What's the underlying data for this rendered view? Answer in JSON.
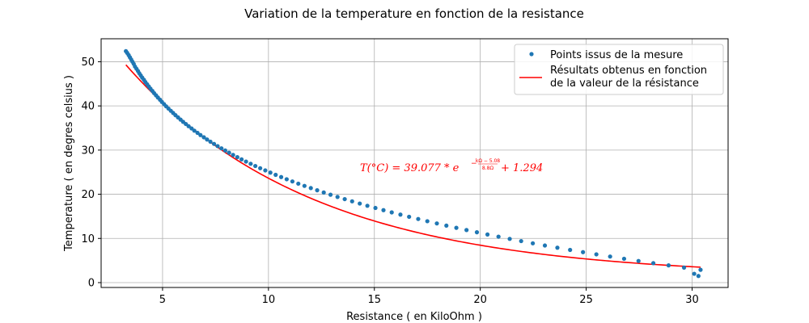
{
  "chart_data": {
    "type": "scatter",
    "title": "Variation de la temperature en fonction de la resistance",
    "xlabel": "Resistance ( en KiloOhm )",
    "ylabel": "Temperature ( en degres celsius )",
    "xlim": [
      2.1,
      31.7
    ],
    "ylim": [
      -1.1,
      55.2
    ],
    "xticks": [
      5,
      10,
      15,
      20,
      25,
      30
    ],
    "yticks": [
      0,
      10,
      20,
      30,
      40,
      50
    ],
    "grid": true,
    "legend_position": "top-right",
    "series": [
      {
        "name": "Points issus de la mesure",
        "kind": "scatter",
        "color": "#1f77b4",
        "points": [
          [
            3.27,
            52.4
          ],
          [
            3.33,
            52.0
          ],
          [
            3.4,
            51.5
          ],
          [
            3.46,
            51.0
          ],
          [
            3.52,
            50.5
          ],
          [
            3.58,
            50.0
          ],
          [
            3.64,
            49.5
          ],
          [
            3.7,
            48.9
          ],
          [
            3.77,
            48.4
          ],
          [
            3.84,
            47.9
          ],
          [
            3.9,
            47.4
          ],
          [
            3.97,
            46.9
          ],
          [
            4.04,
            46.4
          ],
          [
            4.12,
            45.9
          ],
          [
            4.19,
            45.4
          ],
          [
            4.27,
            44.9
          ],
          [
            4.35,
            44.4
          ],
          [
            4.43,
            43.9
          ],
          [
            4.52,
            43.4
          ],
          [
            4.6,
            42.9
          ],
          [
            4.69,
            42.4
          ],
          [
            4.78,
            41.9
          ],
          [
            4.88,
            41.4
          ],
          [
            4.97,
            40.9
          ],
          [
            5.07,
            40.4
          ],
          [
            5.17,
            39.9
          ],
          [
            5.28,
            39.4
          ],
          [
            5.39,
            38.9
          ],
          [
            5.5,
            38.4
          ],
          [
            5.61,
            37.9
          ],
          [
            5.73,
            37.4
          ],
          [
            5.85,
            36.9
          ],
          [
            5.97,
            36.4
          ],
          [
            6.1,
            35.9
          ],
          [
            6.23,
            35.4
          ],
          [
            6.37,
            34.9
          ],
          [
            6.5,
            34.4
          ],
          [
            6.65,
            33.9
          ],
          [
            6.79,
            33.4
          ],
          [
            6.95,
            32.9
          ],
          [
            7.1,
            32.4
          ],
          [
            7.26,
            31.9
          ],
          [
            7.43,
            31.4
          ],
          [
            7.6,
            30.9
          ],
          [
            7.78,
            30.4
          ],
          [
            7.96,
            29.9
          ],
          [
            8.14,
            29.4
          ],
          [
            8.33,
            28.9
          ],
          [
            8.53,
            28.4
          ],
          [
            8.73,
            27.9
          ],
          [
            8.94,
            27.4
          ],
          [
            9.16,
            26.9
          ],
          [
            9.38,
            26.4
          ],
          [
            9.61,
            25.9
          ],
          [
            9.85,
            25.4
          ],
          [
            10.09,
            24.9
          ],
          [
            10.34,
            24.4
          ],
          [
            10.6,
            23.9
          ],
          [
            10.86,
            23.4
          ],
          [
            11.13,
            22.9
          ],
          [
            11.41,
            22.4
          ],
          [
            11.7,
            21.9
          ],
          [
            12.0,
            21.4
          ],
          [
            12.3,
            20.9
          ],
          [
            12.61,
            20.4
          ],
          [
            12.93,
            19.9
          ],
          [
            13.26,
            19.4
          ],
          [
            13.6,
            18.9
          ],
          [
            13.95,
            18.4
          ],
          [
            14.31,
            17.9
          ],
          [
            14.67,
            17.4
          ],
          [
            15.05,
            16.9
          ],
          [
            15.43,
            16.4
          ],
          [
            15.82,
            15.9
          ],
          [
            16.23,
            15.4
          ],
          [
            16.64,
            14.9
          ],
          [
            17.07,
            14.4
          ],
          [
            17.5,
            13.9
          ],
          [
            17.95,
            13.4
          ],
          [
            18.4,
            12.9
          ],
          [
            18.87,
            12.4
          ],
          [
            19.35,
            11.9
          ],
          [
            19.84,
            11.4
          ],
          [
            20.34,
            10.9
          ],
          [
            20.86,
            10.4
          ],
          [
            21.39,
            9.9
          ],
          [
            21.93,
            9.4
          ],
          [
            22.48,
            8.9
          ],
          [
            23.05,
            8.4
          ],
          [
            23.64,
            7.9
          ],
          [
            24.24,
            7.4
          ],
          [
            24.85,
            6.9
          ],
          [
            25.48,
            6.4
          ],
          [
            26.13,
            5.9
          ],
          [
            26.79,
            5.4
          ],
          [
            27.47,
            4.9
          ],
          [
            28.17,
            4.4
          ],
          [
            28.89,
            3.9
          ],
          [
            29.62,
            3.4
          ],
          [
            30.4,
            2.9
          ],
          [
            30.3,
            1.5
          ],
          [
            30.1,
            2.0
          ]
        ]
      },
      {
        "name": "Résultats obtenus en fonction\n de la valeur de la résistance",
        "kind": "line",
        "color": "#ff0000",
        "x_range": [
          3.27,
          30.4
        ]
      }
    ],
    "annotation": {
      "text": "T(°C) = 39.077 * e^(-(kΩ - 5.08)/8.8Ω) + 1.294",
      "color": "#ff0000",
      "at": [
        16,
        25.3
      ]
    }
  },
  "annotation_parts": {
    "lhs": "T(°C) = 39.077 * e",
    "exp_num": "kΩ − 5.08",
    "exp_den": "8.8Ω",
    "exp_minus": "−",
    "rhs": "+ 1.294"
  }
}
